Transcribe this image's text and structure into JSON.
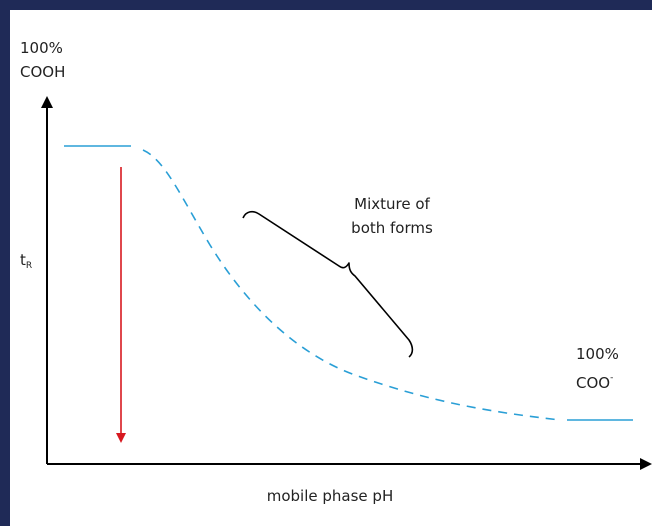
{
  "labels": {
    "top_left_percent": "100%",
    "top_left_form": "COOH",
    "y_axis_main": "t",
    "y_axis_sub": "R",
    "annotation_line1": "Mixture of",
    "annotation_line2": "both forms",
    "bottom_right_percent": "100%",
    "bottom_right_form": "COO",
    "bottom_right_charge": "-",
    "x_axis": "mobile phase pH"
  },
  "colors": {
    "background_frame": "#1f2a57",
    "axis": "#000000",
    "curve": "#2a9fd6",
    "retention_arrow": "#d71920",
    "text": "#222222"
  }
}
